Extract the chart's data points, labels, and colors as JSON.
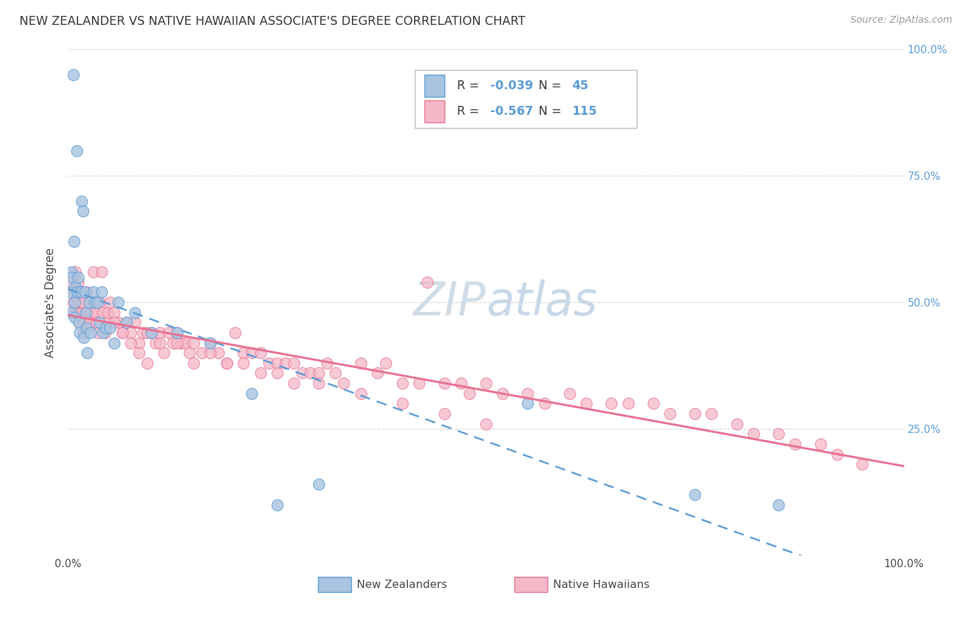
{
  "title": "NEW ZEALANDER VS NATIVE HAWAIIAN ASSOCIATE'S DEGREE CORRELATION CHART",
  "source": "Source: ZipAtlas.com",
  "ylabel": "Associate's Degree",
  "legend_label1": "New Zealanders",
  "legend_label2": "Native Hawaiians",
  "R1": -0.039,
  "N1": 45,
  "R2": -0.567,
  "N2": 115,
  "nz_fill": "#a8c4e0",
  "nz_edge": "#5b9bd5",
  "nh_fill": "#f4b8c8",
  "nh_edge": "#e87090",
  "nz_line_color": "#5b9bd5",
  "nh_line_color": "#e87090",
  "watermark_color": "#e0e8f0",
  "nz_scatter_x": [
    0.003,
    0.003,
    0.004,
    0.005,
    0.006,
    0.007,
    0.008,
    0.008,
    0.009,
    0.01,
    0.011,
    0.012,
    0.013,
    0.014,
    0.015,
    0.016,
    0.018,
    0.019,
    0.02,
    0.021,
    0.022,
    0.023,
    0.025,
    0.027,
    0.03,
    0.032,
    0.035,
    0.038,
    0.04,
    0.042,
    0.045,
    0.05,
    0.055,
    0.06,
    0.07,
    0.08,
    0.1,
    0.13,
    0.17,
    0.22,
    0.25,
    0.3,
    0.55,
    0.75,
    0.85
  ],
  "nz_scatter_y": [
    0.52,
    0.48,
    0.56,
    0.55,
    0.95,
    0.62,
    0.5,
    0.47,
    0.53,
    0.8,
    0.52,
    0.55,
    0.46,
    0.44,
    0.52,
    0.7,
    0.68,
    0.43,
    0.52,
    0.48,
    0.45,
    0.4,
    0.5,
    0.44,
    0.52,
    0.5,
    0.5,
    0.46,
    0.52,
    0.44,
    0.45,
    0.45,
    0.42,
    0.5,
    0.46,
    0.48,
    0.44,
    0.44,
    0.42,
    0.32,
    0.1,
    0.14,
    0.3,
    0.12,
    0.1
  ],
  "nh_scatter_x": [
    0.005,
    0.006,
    0.007,
    0.008,
    0.009,
    0.01,
    0.011,
    0.012,
    0.013,
    0.014,
    0.015,
    0.016,
    0.017,
    0.018,
    0.019,
    0.02,
    0.022,
    0.024,
    0.026,
    0.028,
    0.03,
    0.032,
    0.034,
    0.036,
    0.038,
    0.04,
    0.042,
    0.044,
    0.046,
    0.048,
    0.05,
    0.055,
    0.06,
    0.065,
    0.07,
    0.075,
    0.08,
    0.085,
    0.09,
    0.095,
    0.1,
    0.105,
    0.11,
    0.115,
    0.12,
    0.125,
    0.13,
    0.135,
    0.14,
    0.145,
    0.15,
    0.16,
    0.17,
    0.18,
    0.19,
    0.2,
    0.21,
    0.22,
    0.23,
    0.24,
    0.25,
    0.26,
    0.27,
    0.28,
    0.29,
    0.3,
    0.31,
    0.32,
    0.33,
    0.35,
    0.37,
    0.38,
    0.4,
    0.42,
    0.43,
    0.45,
    0.47,
    0.48,
    0.5,
    0.52,
    0.55,
    0.57,
    0.6,
    0.62,
    0.65,
    0.67,
    0.7,
    0.72,
    0.75,
    0.77,
    0.8,
    0.82,
    0.85,
    0.87,
    0.9,
    0.92,
    0.95,
    0.055,
    0.065,
    0.075,
    0.085,
    0.095,
    0.11,
    0.13,
    0.15,
    0.17,
    0.19,
    0.21,
    0.23,
    0.25,
    0.27,
    0.3,
    0.35,
    0.4,
    0.45,
    0.5
  ],
  "nh_scatter_y": [
    0.54,
    0.5,
    0.48,
    0.52,
    0.56,
    0.48,
    0.5,
    0.54,
    0.46,
    0.5,
    0.52,
    0.48,
    0.5,
    0.5,
    0.44,
    0.46,
    0.52,
    0.48,
    0.46,
    0.48,
    0.56,
    0.48,
    0.46,
    0.44,
    0.5,
    0.56,
    0.48,
    0.44,
    0.46,
    0.48,
    0.5,
    0.48,
    0.46,
    0.44,
    0.46,
    0.44,
    0.46,
    0.42,
    0.44,
    0.44,
    0.44,
    0.42,
    0.44,
    0.4,
    0.44,
    0.42,
    0.44,
    0.42,
    0.42,
    0.4,
    0.42,
    0.4,
    0.42,
    0.4,
    0.38,
    0.44,
    0.4,
    0.4,
    0.4,
    0.38,
    0.38,
    0.38,
    0.38,
    0.36,
    0.36,
    0.36,
    0.38,
    0.36,
    0.34,
    0.38,
    0.36,
    0.38,
    0.34,
    0.34,
    0.54,
    0.34,
    0.34,
    0.32,
    0.34,
    0.32,
    0.32,
    0.3,
    0.32,
    0.3,
    0.3,
    0.3,
    0.3,
    0.28,
    0.28,
    0.28,
    0.26,
    0.24,
    0.24,
    0.22,
    0.22,
    0.2,
    0.18,
    0.46,
    0.44,
    0.42,
    0.4,
    0.38,
    0.42,
    0.42,
    0.38,
    0.4,
    0.38,
    0.38,
    0.36,
    0.36,
    0.34,
    0.34,
    0.32,
    0.3,
    0.28,
    0.26
  ]
}
